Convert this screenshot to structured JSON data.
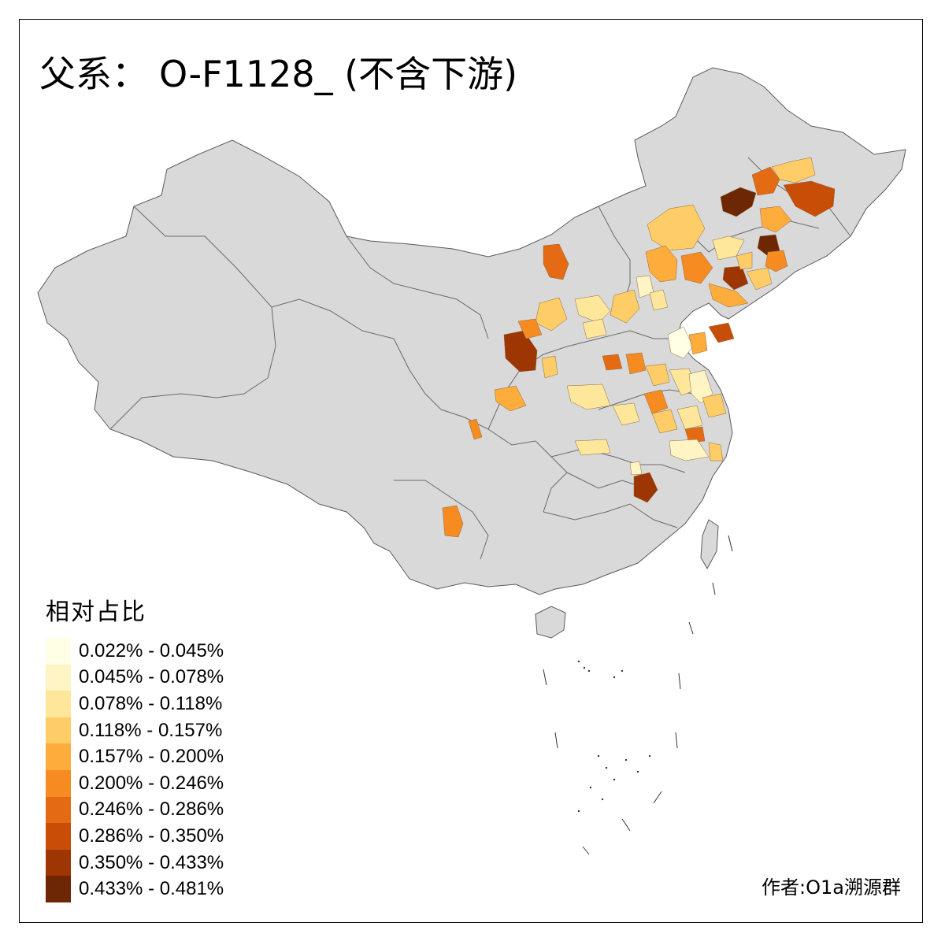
{
  "title": {
    "prefix": "父系：",
    "main": "O-F1128_ (不含下游)"
  },
  "legend": {
    "title": "相对占比",
    "items": [
      {
        "label": "0.022% - 0.045%",
        "color": "#ffffe5"
      },
      {
        "label": "0.045% - 0.078%",
        "color": "#fff5c4"
      },
      {
        "label": "0.078% - 0.118%",
        "color": "#fee79b"
      },
      {
        "label": "0.118% - 0.157%",
        "color": "#fecd67"
      },
      {
        "label": "0.157% - 0.200%",
        "color": "#feac3c"
      },
      {
        "label": "0.200% - 0.246%",
        "color": "#f68b22"
      },
      {
        "label": "0.246% - 0.286%",
        "color": "#e46b13"
      },
      {
        "label": "0.286% - 0.350%",
        "color": "#c84d07"
      },
      {
        "label": "0.350% - 0.433%",
        "color": "#9d3603"
      },
      {
        "label": "0.433% - 0.481%",
        "color": "#6d2704"
      }
    ]
  },
  "author": "作者:O1a溯源群",
  "colors": {
    "land": "#d9d9d9",
    "border": "#5a5a5a",
    "frame": "#000000"
  }
}
